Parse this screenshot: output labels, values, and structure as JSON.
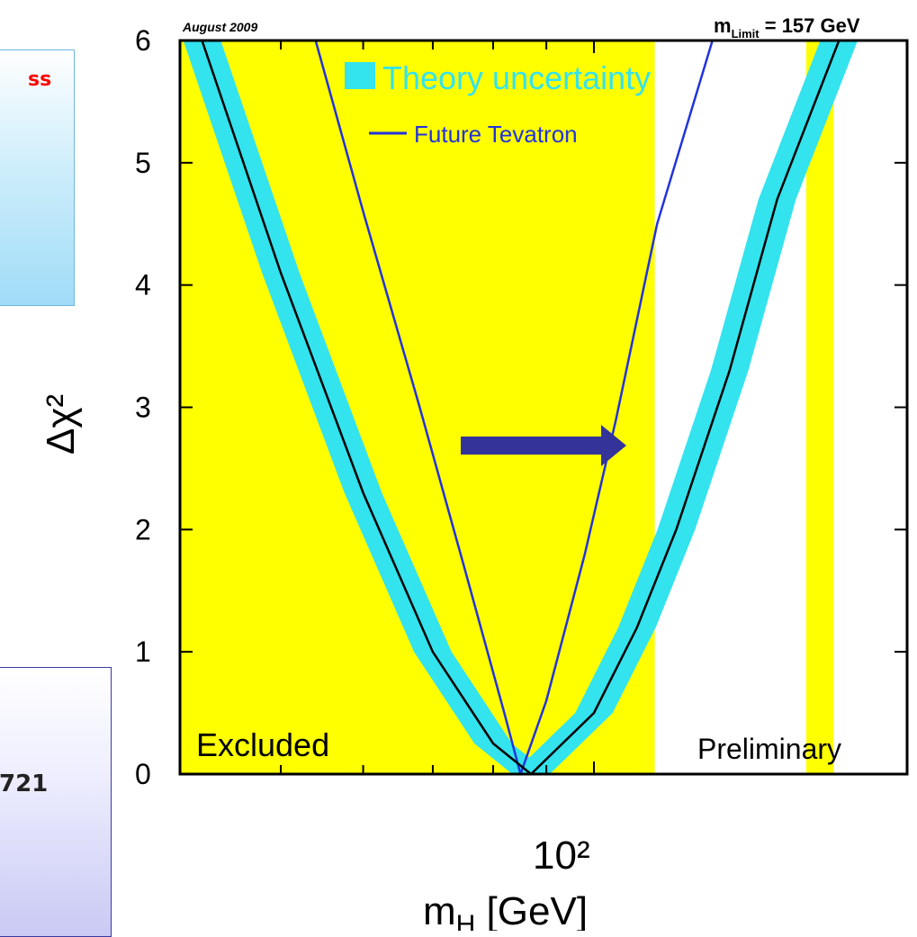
{
  "side_panels": {
    "top_fragment": "ss",
    "bottom_fragment": "721"
  },
  "colors": {
    "excluded": "#ffff00",
    "theory_band": "#33e3ee",
    "central_curve": "#000000",
    "future_curve": "#2233dd",
    "arrow": "#333399",
    "side_box_red_text": "#ff0000"
  },
  "chart_data": {
    "type": "line",
    "top_left_note": "August 2009",
    "top_right_note": "m_Limit = 157 GeV",
    "xlabel": "m_H [GeV]",
    "ylabel": "Δχ²",
    "xscale": "log",
    "xlim": [
      40,
      200
    ],
    "ylim": [
      0,
      6
    ],
    "x_major_tick_label": "10²",
    "y_tick_labels": [
      "0",
      "1",
      "2",
      "3",
      "4",
      "5",
      "6"
    ],
    "legend": {
      "theory_label": "Theory uncertainty",
      "future_label": "Future Tevatron",
      "placement": "top-center"
    },
    "annotations": {
      "excluded": "Excluded",
      "preliminary": "Preliminary"
    },
    "excluded_regions": [
      [
        40,
        114.4
      ],
      [
        160,
        170
      ]
    ],
    "series": [
      {
        "name": "",
        "style": "black",
        "minimum_x": 87,
        "points": [
          [
            42,
            6
          ],
          [
            50,
            4.1
          ],
          [
            60,
            2.3
          ],
          [
            70,
            1.0
          ],
          [
            80,
            0.25
          ],
          [
            87,
            0
          ],
          [
            100,
            0.5
          ],
          [
            110,
            1.2
          ],
          [
            120,
            2.0
          ],
          [
            135,
            3.3
          ],
          [
            150,
            4.7
          ],
          [
            172,
            6
          ]
        ]
      },
      {
        "name": "Theory uncertainty",
        "style": "band",
        "half_width_decades": 0.018
      },
      {
        "name": "Future Tevatron",
        "style": "blue",
        "points": [
          [
            54,
            6
          ],
          [
            60,
            4.6
          ],
          [
            68,
            3.0
          ],
          [
            75,
            1.7
          ],
          [
            82,
            0.5
          ],
          [
            85,
            0
          ],
          [
            90,
            0.6
          ],
          [
            98,
            1.8
          ],
          [
            105,
            2.9
          ],
          [
            115,
            4.5
          ],
          [
            130,
            6
          ]
        ]
      }
    ]
  }
}
